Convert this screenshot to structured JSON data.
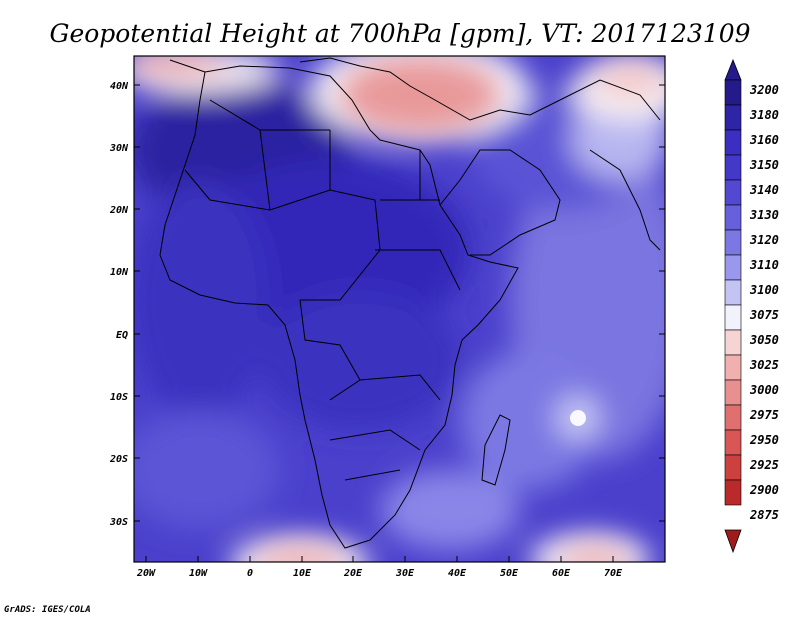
{
  "title": "Geopotential Height at 700hPa [gpm], VT: 2017123109",
  "credit": "GrADS: IGES/COLA",
  "map": {
    "lat_labels": [
      "40N",
      "30N",
      "20N",
      "10N",
      "EQ",
      "10S",
      "20S",
      "30S"
    ],
    "lon_labels": [
      "20W",
      "10W",
      "0",
      "10E",
      "20E",
      "30E",
      "40E",
      "50E",
      "60E",
      "70E"
    ]
  },
  "colorbar": {
    "labels": [
      "3200",
      "3180",
      "3160",
      "3150",
      "3140",
      "3130",
      "3120",
      "3110",
      "3100",
      "3075",
      "3050",
      "3025",
      "3000",
      "2975",
      "2950",
      "2925",
      "2900",
      "2875"
    ],
    "colors": [
      "#241a8a",
      "#2e24a6",
      "#3a2fc0",
      "#4438c8",
      "#5248d2",
      "#6660dc",
      "#7c78e3",
      "#9a98ec",
      "#c4c4f4",
      "#f2f2fc",
      "#f7d4d4",
      "#f0b0b0",
      "#e89090",
      "#e07070",
      "#d85656",
      "#cc4040",
      "#bb2a2a",
      "#a01c1c"
    ],
    "top_arrow_color": "#241a8a",
    "bottom_arrow_color": "#a01c1c"
  }
}
